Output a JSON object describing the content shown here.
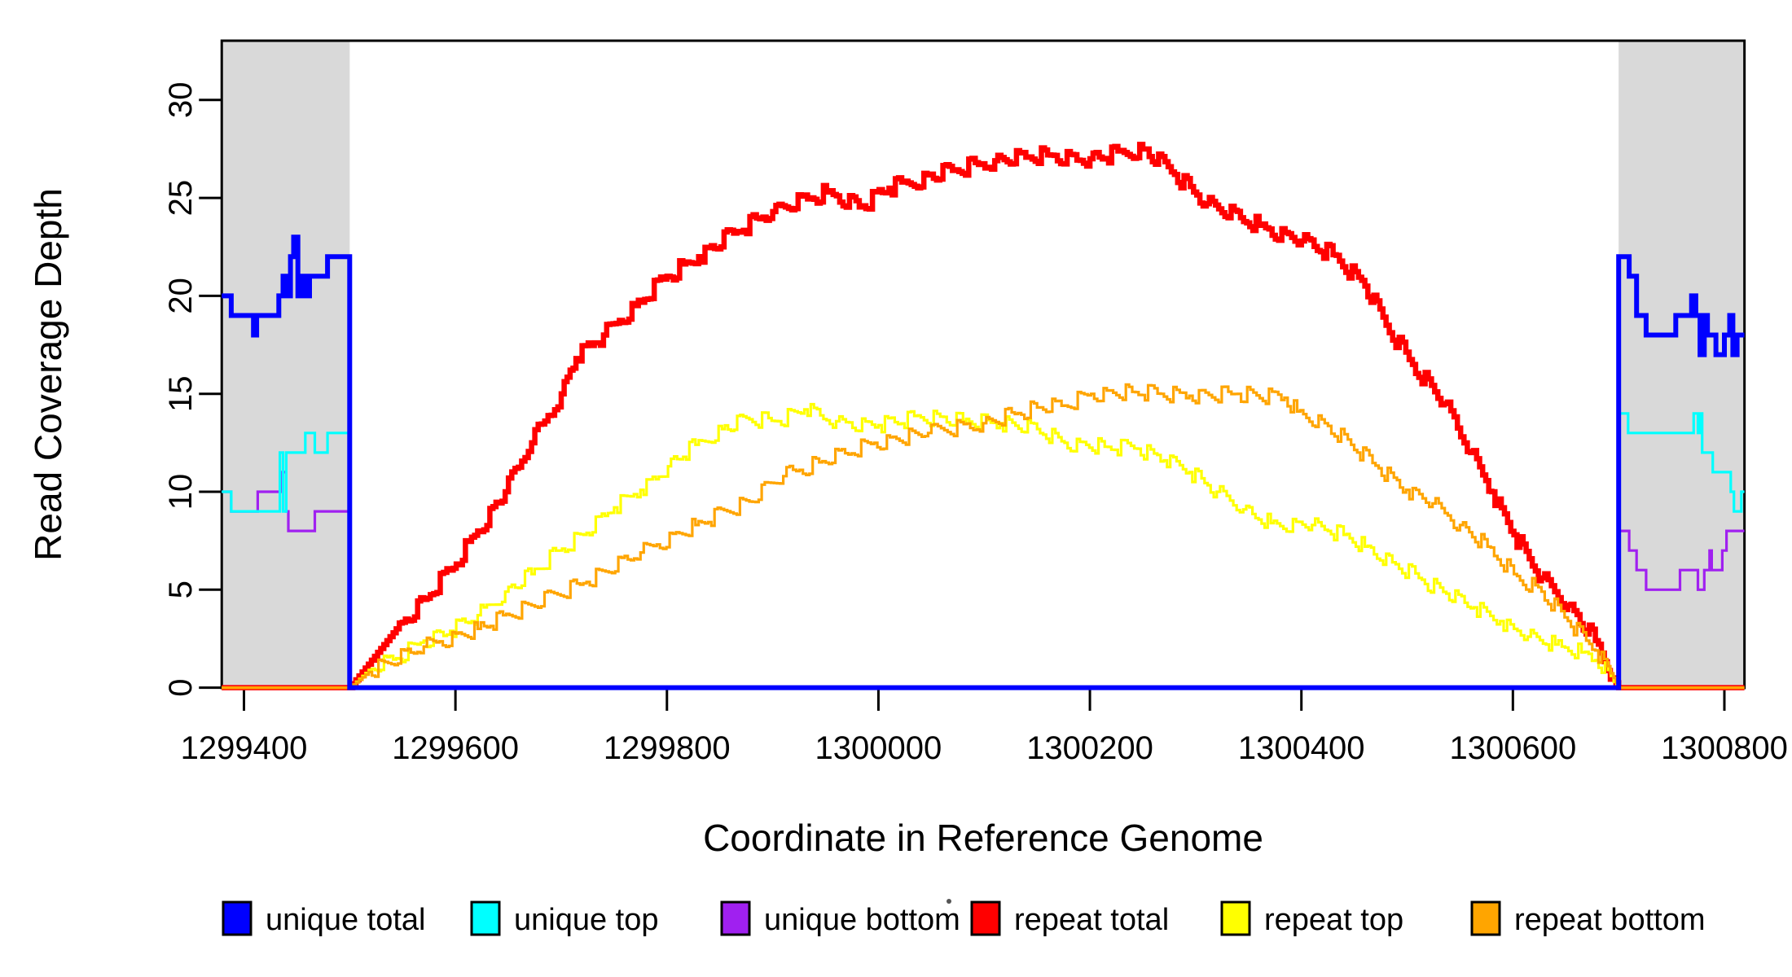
{
  "chart_data": {
    "type": "line",
    "title": "",
    "xlabel": "Coordinate in Reference Genome",
    "ylabel": "Read Coverage Depth",
    "x_ticks": [
      1299400,
      1299600,
      1299800,
      1300000,
      1300200,
      1300400,
      1300600,
      1300800
    ],
    "y_ticks": [
      0,
      5,
      10,
      15,
      20,
      25,
      30
    ],
    "x_domain": [
      1299379,
      1300819
    ],
    "y_domain": [
      0,
      33
    ],
    "grid": false,
    "legend_position": "bottom",
    "shaded_regions": [
      {
        "from": 1299379,
        "to": 1299500,
        "color": "#D9D9D9"
      },
      {
        "from": 1300700,
        "to": 1300819,
        "color": "#D9D9D9"
      }
    ],
    "legend": [
      {
        "label": "unique total",
        "color": "#0000FF"
      },
      {
        "label": "unique top",
        "color": "#00FFFF"
      },
      {
        "label": "unique bottom",
        "color": "#A020F0"
      },
      {
        "label": "repeat total",
        "color": "#FF0000"
      },
      {
        "label": "repeat top",
        "color": "#FFFF00"
      },
      {
        "label": "repeat bottom",
        "color": "#FFA500"
      }
    ],
    "series": [
      {
        "name": "repeat total",
        "color": "#FF0000",
        "width": 6.5,
        "style": "coverage",
        "points": [
          [
            1299379,
            0
          ],
          [
            1299500,
            0
          ],
          [
            1299544,
            3
          ],
          [
            1299570,
            4.5
          ],
          [
            1299595,
            6
          ],
          [
            1299621,
            8
          ],
          [
            1299647,
            10
          ],
          [
            1299672,
            12.5
          ],
          [
            1299700,
            15
          ],
          [
            1299714,
            16.8
          ],
          [
            1299740,
            18
          ],
          [
            1299770,
            19.5
          ],
          [
            1299800,
            21
          ],
          [
            1299830,
            22
          ],
          [
            1299863,
            23.2
          ],
          [
            1299900,
            24.3
          ],
          [
            1299951,
            25.3
          ],
          [
            1299985,
            24.6
          ],
          [
            1300010,
            25.5
          ],
          [
            1300070,
            26.4
          ],
          [
            1300110,
            26.9
          ],
          [
            1300160,
            27.2
          ],
          [
            1300200,
            27
          ],
          [
            1300250,
            27.5
          ],
          [
            1300280,
            26.2
          ],
          [
            1300310,
            24.7
          ],
          [
            1300360,
            23.6
          ],
          [
            1300400,
            22.8
          ],
          [
            1300430,
            22.1
          ],
          [
            1300460,
            20.5
          ],
          [
            1300480,
            18.5
          ],
          [
            1300505,
            16.5
          ],
          [
            1300535,
            14.5
          ],
          [
            1300560,
            12
          ],
          [
            1300580,
            10
          ],
          [
            1300601,
            7.8
          ],
          [
            1300627,
            5.6
          ],
          [
            1300652,
            4.2
          ],
          [
            1300678,
            2.4
          ],
          [
            1300695,
            0.5
          ],
          [
            1300700,
            0
          ],
          [
            1300819,
            0
          ]
        ]
      },
      {
        "name": "repeat top",
        "color": "#FFFF00",
        "width": 3.2,
        "style": "coverage",
        "points": [
          [
            1299379,
            0
          ],
          [
            1299500,
            0
          ],
          [
            1299518,
            0.9
          ],
          [
            1299544,
            1.5
          ],
          [
            1299570,
            2.4
          ],
          [
            1299595,
            2.9
          ],
          [
            1299621,
            3.7
          ],
          [
            1299647,
            4.9
          ],
          [
            1299672,
            5.8
          ],
          [
            1299698,
            7
          ],
          [
            1299724,
            7.9
          ],
          [
            1299750,
            9.2
          ],
          [
            1299775,
            10.1
          ],
          [
            1299801,
            11.3
          ],
          [
            1299827,
            12.4
          ],
          [
            1299852,
            13.2
          ],
          [
            1299878,
            13.7
          ],
          [
            1299905,
            13.6
          ],
          [
            1299930,
            14.2
          ],
          [
            1299960,
            13.6
          ],
          [
            1300000,
            13.4
          ],
          [
            1300040,
            13.8
          ],
          [
            1300080,
            13.6
          ],
          [
            1300115,
            13.5
          ],
          [
            1300150,
            13.2
          ],
          [
            1300176,
            12.5
          ],
          [
            1300214,
            12.3
          ],
          [
            1300245,
            12.2
          ],
          [
            1300270,
            11.6
          ],
          [
            1300294,
            11
          ],
          [
            1300320,
            10
          ],
          [
            1300345,
            9.1
          ],
          [
            1300371,
            8.4
          ],
          [
            1300410,
            8.3
          ],
          [
            1300425,
            8
          ],
          [
            1300440,
            7.8
          ],
          [
            1300460,
            7.2
          ],
          [
            1300486,
            6.4
          ],
          [
            1300511,
            5.6
          ],
          [
            1300537,
            4.8
          ],
          [
            1300563,
            4.1
          ],
          [
            1300588,
            3.4
          ],
          [
            1300601,
            3
          ],
          [
            1300614,
            2.6
          ],
          [
            1300640,
            2.2
          ],
          [
            1300665,
            1.8
          ],
          [
            1300678,
            1.4
          ],
          [
            1300690,
            0.9
          ],
          [
            1300698,
            0
          ],
          [
            1300819,
            0
          ]
        ]
      },
      {
        "name": "repeat bottom",
        "color": "#FFA500",
        "width": 3.2,
        "style": "coverage",
        "points": [
          [
            1299379,
            0
          ],
          [
            1299500,
            0
          ],
          [
            1299518,
            0.8
          ],
          [
            1299570,
            2.1
          ],
          [
            1299621,
            3
          ],
          [
            1299672,
            4.2
          ],
          [
            1299724,
            5.4
          ],
          [
            1299775,
            6.9
          ],
          [
            1299827,
            8.3
          ],
          [
            1299878,
            9.5
          ],
          [
            1299910,
            10.8
          ],
          [
            1299944,
            11.5
          ],
          [
            1299996,
            12.5
          ],
          [
            1300047,
            13
          ],
          [
            1300099,
            13.5
          ],
          [
            1300150,
            14.3
          ],
          [
            1300176,
            14.4
          ],
          [
            1300201,
            15
          ],
          [
            1300240,
            15.1
          ],
          [
            1300294,
            14.9
          ],
          [
            1300340,
            15
          ],
          [
            1300384,
            14.8
          ],
          [
            1300396,
            14.1
          ],
          [
            1300422,
            13.5
          ],
          [
            1300447,
            12.4
          ],
          [
            1300473,
            11.2
          ],
          [
            1300499,
            10.1
          ],
          [
            1300524,
            9.4
          ],
          [
            1300550,
            8.3
          ],
          [
            1300576,
            7.2
          ],
          [
            1300601,
            5.8
          ],
          [
            1300627,
            4.9
          ],
          [
            1300652,
            3.4
          ],
          [
            1300678,
            1.9
          ],
          [
            1300695,
            0.5
          ],
          [
            1300700,
            0
          ],
          [
            1300819,
            0
          ]
        ]
      },
      {
        "name": "unique bottom",
        "color": "#A020F0",
        "width": 3.2,
        "style": "step",
        "points": [
          [
            1299379,
            10
          ],
          [
            1299388,
            9
          ],
          [
            1299413,
            10
          ],
          [
            1299435,
            11
          ],
          [
            1299440,
            9
          ],
          [
            1299442,
            8
          ],
          [
            1299467,
            9
          ],
          [
            1299500,
            0
          ],
          [
            1300700,
            8
          ],
          [
            1300710,
            7
          ],
          [
            1300717,
            6
          ],
          [
            1300726,
            5
          ],
          [
            1300758,
            6
          ],
          [
            1300775,
            5
          ],
          [
            1300781,
            6
          ],
          [
            1300786,
            7
          ],
          [
            1300788,
            6
          ],
          [
            1300798,
            7
          ],
          [
            1300802,
            8
          ],
          [
            1300819,
            8
          ]
        ]
      },
      {
        "name": "unique top",
        "color": "#00FFFF",
        "width": 3.2,
        "style": "step",
        "points": [
          [
            1299379,
            10
          ],
          [
            1299388,
            9
          ],
          [
            1299434,
            12
          ],
          [
            1299437,
            9
          ],
          [
            1299440,
            12
          ],
          [
            1299458,
            13
          ],
          [
            1299467,
            12
          ],
          [
            1299479,
            13
          ],
          [
            1299500,
            0
          ],
          [
            1300700,
            14
          ],
          [
            1300709,
            13
          ],
          [
            1300771,
            14
          ],
          [
            1300775,
            13
          ],
          [
            1300777,
            14
          ],
          [
            1300779,
            12
          ],
          [
            1300789,
            11
          ],
          [
            1300806,
            10
          ],
          [
            1300809,
            9
          ],
          [
            1300816,
            10
          ],
          [
            1300819,
            10
          ]
        ]
      },
      {
        "name": "unique total",
        "color": "#0000FF",
        "width": 6,
        "style": "step",
        "points": [
          [
            1299379,
            20
          ],
          [
            1299388,
            19
          ],
          [
            1299409,
            18
          ],
          [
            1299412,
            19
          ],
          [
            1299433,
            20
          ],
          [
            1299437,
            21
          ],
          [
            1299441,
            20
          ],
          [
            1299444,
            22
          ],
          [
            1299447,
            23
          ],
          [
            1299451,
            20
          ],
          [
            1299454,
            21
          ],
          [
            1299458,
            20
          ],
          [
            1299462,
            21
          ],
          [
            1299479,
            22
          ],
          [
            1299500,
            0
          ],
          [
            1300700,
            22
          ],
          [
            1300710,
            21
          ],
          [
            1300717,
            19
          ],
          [
            1300726,
            18
          ],
          [
            1300754,
            19
          ],
          [
            1300769,
            20
          ],
          [
            1300773,
            19
          ],
          [
            1300777,
            17
          ],
          [
            1300781,
            19
          ],
          [
            1300784,
            18
          ],
          [
            1300792,
            17
          ],
          [
            1300800,
            18
          ],
          [
            1300805,
            19
          ],
          [
            1300808,
            17
          ],
          [
            1300812,
            18
          ],
          [
            1300819,
            18
          ]
        ]
      }
    ],
    "stray_dot": {
      "x": 1165,
      "y": 1107
    }
  }
}
